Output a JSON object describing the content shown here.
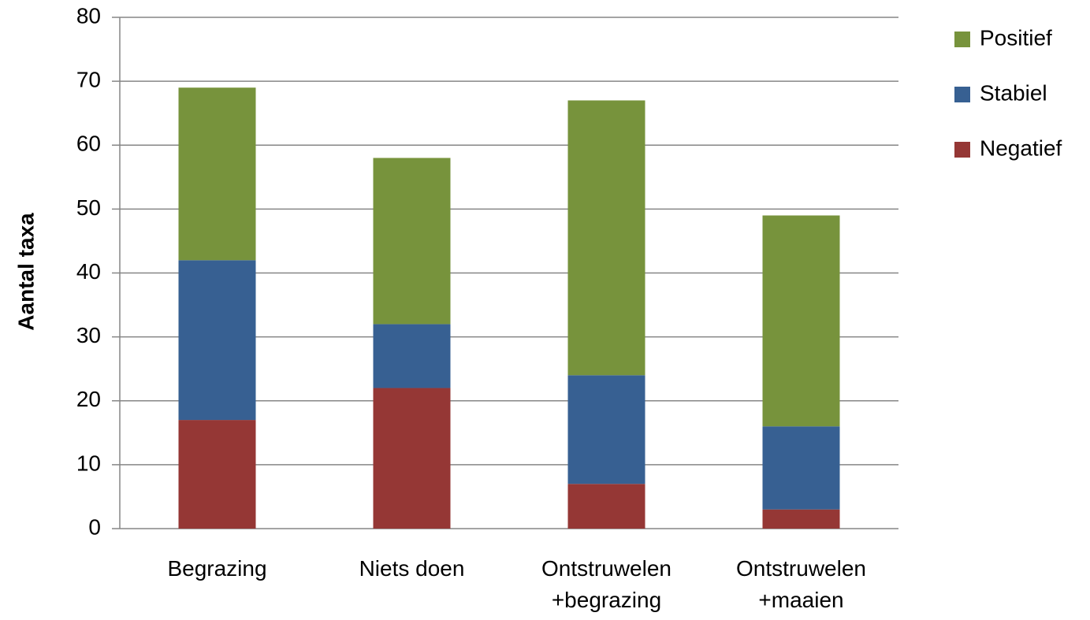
{
  "chart_data": {
    "type": "stacked_bar",
    "y_label": "Aantal taxa",
    "categories": [
      "Begrazing",
      "Niets doen",
      "Ontstruwelen +begrazing",
      "Ontstruwelen +maaien"
    ],
    "series": [
      {
        "name": "Negatief",
        "color": "#953735",
        "values": [
          17,
          22,
          7,
          3
        ]
      },
      {
        "name": "Stabiel",
        "color": "#376092",
        "values": [
          25,
          10,
          17,
          13
        ]
      },
      {
        "name": "Positief",
        "color": "#77933c",
        "values": [
          27,
          26,
          43,
          33
        ]
      }
    ],
    "ylim": [
      0,
      80
    ],
    "yticks": [
      0,
      10,
      20,
      30,
      40,
      50,
      60,
      70,
      80
    ],
    "grid": true,
    "legend": "right"
  }
}
